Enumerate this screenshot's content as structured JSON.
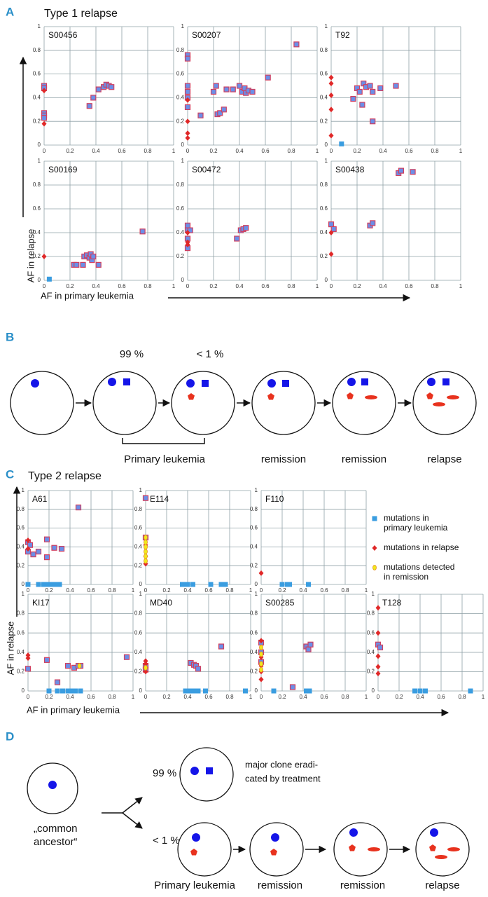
{
  "panels": {
    "A": {
      "label": "A",
      "title": "Type 1 relapse",
      "y_label": "AF in relapse",
      "x_label": "AF in primary leukemia"
    },
    "B": {
      "label": "B",
      "percent_major": "99 %",
      "percent_minor": "< 1 %",
      "stages": [
        "Primary leukemia",
        "remission",
        "remission",
        "relapse"
      ]
    },
    "C": {
      "label": "C",
      "title": "Type 2 relapse",
      "y_label": "AF in relapse",
      "x_label": "AF in primary leukemia",
      "legend": [
        {
          "lines": [
            "mutations in",
            "primary leukemia"
          ],
          "color": "#3a9de0",
          "marker": "square"
        },
        {
          "lines": [
            "mutations in relapse"
          ],
          "color": "#e02828",
          "marker": "diamond"
        },
        {
          "lines": [
            "mutations detected",
            "in remission"
          ],
          "color": "#f0e81c",
          "marker": "dot"
        }
      ]
    },
    "D": {
      "label": "D",
      "percent_major": "99 %",
      "percent_minor": "< 1 %",
      "note": [
        "major clone eradi-",
        "cated by treatment"
      ],
      "ancestor": [
        "„common",
        "ancestor“"
      ],
      "stages": [
        "Primary leukemia",
        "remission",
        "remission",
        "relapse"
      ]
    }
  },
  "chart_data": [
    {
      "type": "scatter",
      "title": "S00456",
      "xlim": [
        0,
        1
      ],
      "ylim": [
        0,
        1
      ],
      "xticks": [
        0,
        0.2,
        0.4,
        0.6,
        0.8,
        1
      ],
      "yticks": [
        0,
        0.2,
        0.4,
        0.6,
        0.8,
        1
      ],
      "grid": true,
      "series": [
        {
          "marker": "square",
          "color": "#6b8fe8",
          "edge": "#d04060",
          "x": [
            0,
            0,
            0,
            0,
            0,
            0.35,
            0.38,
            0.42,
            0.46,
            0.48,
            0.5,
            0.52
          ],
          "y": [
            0.5,
            0.48,
            0.27,
            0.25,
            0.23,
            0.33,
            0.4,
            0.47,
            0.49,
            0.51,
            0.5,
            0.49
          ]
        },
        {
          "marker": "diamond",
          "color": "#e02828",
          "x": [
            0,
            0
          ],
          "y": [
            0.18,
            0.46
          ]
        }
      ]
    },
    {
      "type": "scatter",
      "title": "S00207",
      "xlim": [
        0,
        1
      ],
      "ylim": [
        0,
        1
      ],
      "xticks": [
        0,
        0.2,
        0.4,
        0.6,
        0.8,
        1
      ],
      "yticks": [
        0,
        0.2,
        0.4,
        0.6,
        0.8,
        1
      ],
      "grid": true,
      "series": [
        {
          "marker": "square",
          "color": "#6b8fe8",
          "edge": "#d04060",
          "x": [
            0,
            0,
            0,
            0,
            0,
            0,
            0.1,
            0.2,
            0.22,
            0.23,
            0.25,
            0.28,
            0.3,
            0.35,
            0.4,
            0.42,
            0.44,
            0.45,
            0.47,
            0.5,
            0.62,
            0.84
          ],
          "y": [
            0.76,
            0.73,
            0.5,
            0.45,
            0.4,
            0.32,
            0.25,
            0.45,
            0.5,
            0.26,
            0.27,
            0.3,
            0.47,
            0.47,
            0.5,
            0.45,
            0.48,
            0.44,
            0.46,
            0.45,
            0.57,
            0.85
          ]
        },
        {
          "marker": "diamond",
          "color": "#e02828",
          "x": [
            0,
            0,
            0,
            0
          ],
          "y": [
            0.1,
            0.06,
            0.2,
            0.38
          ]
        }
      ]
    },
    {
      "type": "scatter",
      "title": "T92",
      "xlim": [
        0,
        1
      ],
      "ylim": [
        0,
        1
      ],
      "xticks": [
        0,
        0.2,
        0.4,
        0.6,
        0.8,
        1
      ],
      "yticks": [
        0,
        0.2,
        0.4,
        0.6,
        0.8,
        1
      ],
      "grid": true,
      "series": [
        {
          "marker": "square",
          "color": "#6b8fe8",
          "edge": "#d04060",
          "x": [
            0.17,
            0.2,
            0.22,
            0.25,
            0.27,
            0.3,
            0.32,
            0.38,
            0.5,
            0.32,
            0.24
          ],
          "y": [
            0.39,
            0.48,
            0.45,
            0.52,
            0.49,
            0.5,
            0.2,
            0.48,
            0.5,
            0.45,
            0.34
          ]
        },
        {
          "marker": "square",
          "color": "#3a9de0",
          "x": [
            0.08
          ],
          "y": [
            0.01
          ]
        },
        {
          "marker": "diamond",
          "color": "#e02828",
          "x": [
            0,
            0,
            0,
            0,
            0
          ],
          "y": [
            0.57,
            0.52,
            0.42,
            0.3,
            0.08
          ]
        }
      ]
    },
    {
      "type": "scatter",
      "title": "S00169",
      "xlim": [
        0,
        1
      ],
      "ylim": [
        0,
        1
      ],
      "xticks": [
        0,
        0.2,
        0.4,
        0.6,
        0.8,
        1
      ],
      "yticks": [
        0,
        0.2,
        0.4,
        0.6,
        0.8,
        1
      ],
      "grid": true,
      "series": [
        {
          "marker": "square",
          "color": "#6b8fe8",
          "edge": "#d04060",
          "x": [
            0.23,
            0.25,
            0.3,
            0.31,
            0.33,
            0.35,
            0.36,
            0.37,
            0.38,
            0.42,
            0.76
          ],
          "y": [
            0.13,
            0.13,
            0.13,
            0.2,
            0.21,
            0.19,
            0.22,
            0.17,
            0.2,
            0.13,
            0.41
          ]
        },
        {
          "marker": "square",
          "color": "#3a9de0",
          "x": [
            0.04
          ],
          "y": [
            0.01
          ]
        },
        {
          "marker": "diamond",
          "color": "#e02828",
          "x": [
            0
          ],
          "y": [
            0.2
          ]
        }
      ]
    },
    {
      "type": "scatter",
      "title": "S00472",
      "xlim": [
        0,
        1
      ],
      "ylim": [
        0,
        1
      ],
      "xticks": [
        0,
        0.2,
        0.4,
        0.6,
        0.8,
        1
      ],
      "yticks": [
        0,
        0.2,
        0.4,
        0.6,
        0.8,
        1
      ],
      "grid": true,
      "series": [
        {
          "marker": "square",
          "color": "#6b8fe8",
          "edge": "#d04060",
          "x": [
            0,
            0,
            0,
            0,
            0.02,
            0.38,
            0.41,
            0.43,
            0.45
          ],
          "y": [
            0.46,
            0.42,
            0.35,
            0.27,
            0.42,
            0.35,
            0.42,
            0.43,
            0.44
          ]
        },
        {
          "marker": "diamond",
          "color": "#e02828",
          "x": [
            0,
            0,
            0
          ],
          "y": [
            0.4,
            0.32,
            0.3
          ]
        }
      ]
    },
    {
      "type": "scatter",
      "title": "S00438",
      "xlim": [
        0,
        1
      ],
      "ylim": [
        0,
        1
      ],
      "xticks": [
        0,
        0.2,
        0.4,
        0.6,
        0.8,
        1
      ],
      "yticks": [
        0,
        0.2,
        0.4,
        0.6,
        0.8,
        1
      ],
      "grid": true,
      "series": [
        {
          "marker": "square",
          "color": "#6b8fe8",
          "edge": "#d04060",
          "x": [
            0,
            0.02,
            0.3,
            0.32,
            0.52,
            0.54,
            0.63
          ],
          "y": [
            0.47,
            0.43,
            0.46,
            0.48,
            0.9,
            0.92,
            0.91
          ]
        },
        {
          "marker": "diamond",
          "color": "#e02828",
          "x": [
            0,
            0
          ],
          "y": [
            0.22,
            0.4
          ]
        }
      ]
    },
    {
      "type": "scatter",
      "title": "A61",
      "xlim": [
        0,
        1
      ],
      "ylim": [
        0,
        1
      ],
      "xticks": [
        0,
        0.2,
        0.4,
        0.6,
        0.8,
        1
      ],
      "yticks": [
        0,
        0.2,
        0.4,
        0.6,
        0.8,
        1
      ],
      "grid": true,
      "series": [
        {
          "marker": "square",
          "color": "#6b8fe8",
          "edge": "#d04060",
          "x": [
            0,
            0,
            0.05,
            0.1,
            0.18,
            0.18,
            0.25,
            0.32,
            0.48,
            0.02
          ],
          "y": [
            0.35,
            0.45,
            0.32,
            0.35,
            0.48,
            0.29,
            0.39,
            0.38,
            0.82,
            0.42
          ]
        },
        {
          "marker": "square",
          "color": "#3a9de0",
          "x": [
            0,
            0.1,
            0.15,
            0.18,
            0.2,
            0.23,
            0.25,
            0.27,
            0.3
          ],
          "y": [
            0,
            0,
            0,
            0,
            0,
            0,
            0,
            0,
            0
          ]
        },
        {
          "marker": "diamond",
          "color": "#e02828",
          "x": [
            0,
            0
          ],
          "y": [
            0.47,
            0.38
          ]
        }
      ]
    },
    {
      "type": "scatter",
      "title": "E114",
      "xlim": [
        0,
        1
      ],
      "ylim": [
        0,
        1
      ],
      "xticks": [
        0,
        0.2,
        0.4,
        0.6,
        0.8,
        1
      ],
      "yticks": [
        0,
        0.2,
        0.4,
        0.6,
        0.8,
        1
      ],
      "grid": true,
      "series": [
        {
          "marker": "square",
          "color": "#6b8fe8",
          "edge": "#d04060",
          "x": [
            0,
            0
          ],
          "y": [
            0.92,
            0.5
          ]
        },
        {
          "marker": "square",
          "color": "#3a9de0",
          "x": [
            0.35,
            0.38,
            0.4,
            0.45,
            0.62,
            0.72,
            0.76
          ],
          "y": [
            0,
            0,
            0,
            0,
            0,
            0,
            0
          ]
        },
        {
          "marker": "diamond",
          "color": "#e02828",
          "x": [
            0,
            0,
            0
          ],
          "y": [
            0.42,
            0.3,
            0.22
          ]
        },
        {
          "marker": "dot",
          "color": "#f0e81c",
          "x": [
            0,
            0,
            0,
            0,
            0,
            0
          ],
          "y": [
            0.5,
            0.45,
            0.4,
            0.35,
            0.3,
            0.25
          ]
        }
      ]
    },
    {
      "type": "scatter",
      "title": "F110",
      "xlim": [
        0,
        1
      ],
      "ylim": [
        0,
        1
      ],
      "xticks": [
        0,
        0.2,
        0.4,
        0.6,
        0.8,
        1
      ],
      "yticks": [
        0,
        0.2,
        0.4,
        0.6,
        0.8,
        1
      ],
      "grid": true,
      "series": [
        {
          "marker": "square",
          "color": "#3a9de0",
          "x": [
            0.2,
            0.25,
            0.27,
            0.45
          ],
          "y": [
            0,
            0,
            0,
            0
          ]
        },
        {
          "marker": "diamond",
          "color": "#e02828",
          "x": [
            0
          ],
          "y": [
            0.12
          ]
        }
      ]
    },
    {
      "type": "scatter",
      "title": "KI17",
      "xlim": [
        0,
        1
      ],
      "ylim": [
        0,
        1
      ],
      "xticks": [
        0,
        0.2,
        0.4,
        0.6,
        0.8,
        1
      ],
      "yticks": [
        0,
        0.2,
        0.4,
        0.6,
        0.8,
        1
      ],
      "grid": true,
      "series": [
        {
          "marker": "square",
          "color": "#6b8fe8",
          "edge": "#d04060",
          "x": [
            0,
            0.18,
            0.28,
            0.38,
            0.44,
            0.48,
            0.5,
            0.94
          ],
          "y": [
            0.23,
            0.32,
            0.09,
            0.26,
            0.24,
            0.26,
            0.26,
            0.35
          ]
        },
        {
          "marker": "square",
          "color": "#3a9de0",
          "x": [
            0.2,
            0.28,
            0.33,
            0.38,
            0.42,
            0.45,
            0.5
          ],
          "y": [
            0,
            0,
            0,
            0,
            0,
            0,
            0
          ]
        },
        {
          "marker": "diamond",
          "color": "#e02828",
          "x": [
            0,
            0
          ],
          "y": [
            0.37,
            0.34
          ]
        },
        {
          "marker": "dot",
          "color": "#f0e81c",
          "x": [
            0.49
          ],
          "y": [
            0.26
          ]
        }
      ]
    },
    {
      "type": "scatter",
      "title": "MD40",
      "xlim": [
        0,
        1
      ],
      "ylim": [
        0,
        1
      ],
      "xticks": [
        0,
        0.2,
        0.4,
        0.6,
        0.8,
        1
      ],
      "yticks": [
        0,
        0.2,
        0.4,
        0.6,
        0.8,
        1
      ],
      "grid": true,
      "series": [
        {
          "marker": "square",
          "color": "#6b8fe8",
          "edge": "#d04060",
          "x": [
            0,
            0,
            0.43,
            0.46,
            0.48,
            0.5,
            0.72
          ],
          "y": [
            0.26,
            0.22,
            0.29,
            0.27,
            0.26,
            0.23,
            0.46
          ]
        },
        {
          "marker": "square",
          "color": "#3a9de0",
          "x": [
            0.38,
            0.42,
            0.44,
            0.46,
            0.5,
            0.57,
            0.95
          ],
          "y": [
            0,
            0,
            0,
            0,
            0,
            0,
            0
          ]
        },
        {
          "marker": "diamond",
          "color": "#e02828",
          "x": [
            0,
            0,
            0,
            0
          ],
          "y": [
            0.31,
            0.28,
            0.24,
            0.2
          ]
        },
        {
          "marker": "dot",
          "color": "#f0e81c",
          "x": [
            0
          ],
          "y": [
            0.24
          ]
        }
      ]
    },
    {
      "type": "scatter",
      "title": "S00285",
      "xlim": [
        0,
        1
      ],
      "ylim": [
        0,
        1
      ],
      "xticks": [
        0,
        0.2,
        0.4,
        0.6,
        0.8,
        1
      ],
      "yticks": [
        0,
        0.2,
        0.4,
        0.6,
        0.8,
        1
      ],
      "grid": true,
      "series": [
        {
          "marker": "square",
          "color": "#6b8fe8",
          "edge": "#d04060",
          "x": [
            0,
            0,
            0,
            0.3,
            0.43,
            0.45,
            0.47
          ],
          "y": [
            0.5,
            0.4,
            0.3,
            0.04,
            0.46,
            0.43,
            0.48
          ]
        },
        {
          "marker": "square",
          "color": "#3a9de0",
          "x": [
            0.12,
            0.43,
            0.46
          ],
          "y": [
            0,
            0,
            0
          ]
        },
        {
          "marker": "diamond",
          "color": "#e02828",
          "x": [
            0,
            0,
            0,
            0,
            0
          ],
          "y": [
            0.52,
            0.35,
            0.2,
            0.12,
            0.26
          ]
        },
        {
          "marker": "dot",
          "color": "#f0e81c",
          "x": [
            0,
            0,
            0,
            0
          ],
          "y": [
            0.45,
            0.38,
            0.28,
            0.22
          ]
        }
      ]
    },
    {
      "type": "scatter",
      "title": "T128",
      "xlim": [
        0,
        1
      ],
      "ylim": [
        0,
        1
      ],
      "xticks": [
        0,
        0.2,
        0.4,
        0.6,
        0.8,
        1
      ],
      "yticks": [
        0,
        0.2,
        0.4,
        0.6,
        0.8,
        1
      ],
      "grid": true,
      "series": [
        {
          "marker": "square",
          "color": "#6b8fe8",
          "edge": "#d04060",
          "x": [
            0,
            0.02
          ],
          "y": [
            0.48,
            0.45
          ]
        },
        {
          "marker": "square",
          "color": "#3a9de0",
          "x": [
            0.35,
            0.4,
            0.45,
            0.88
          ],
          "y": [
            0,
            0,
            0,
            0
          ]
        },
        {
          "marker": "diamond",
          "color": "#e02828",
          "x": [
            0,
            0,
            0,
            0,
            0
          ],
          "y": [
            0.86,
            0.6,
            0.36,
            0.25,
            0.18
          ]
        }
      ]
    }
  ]
}
